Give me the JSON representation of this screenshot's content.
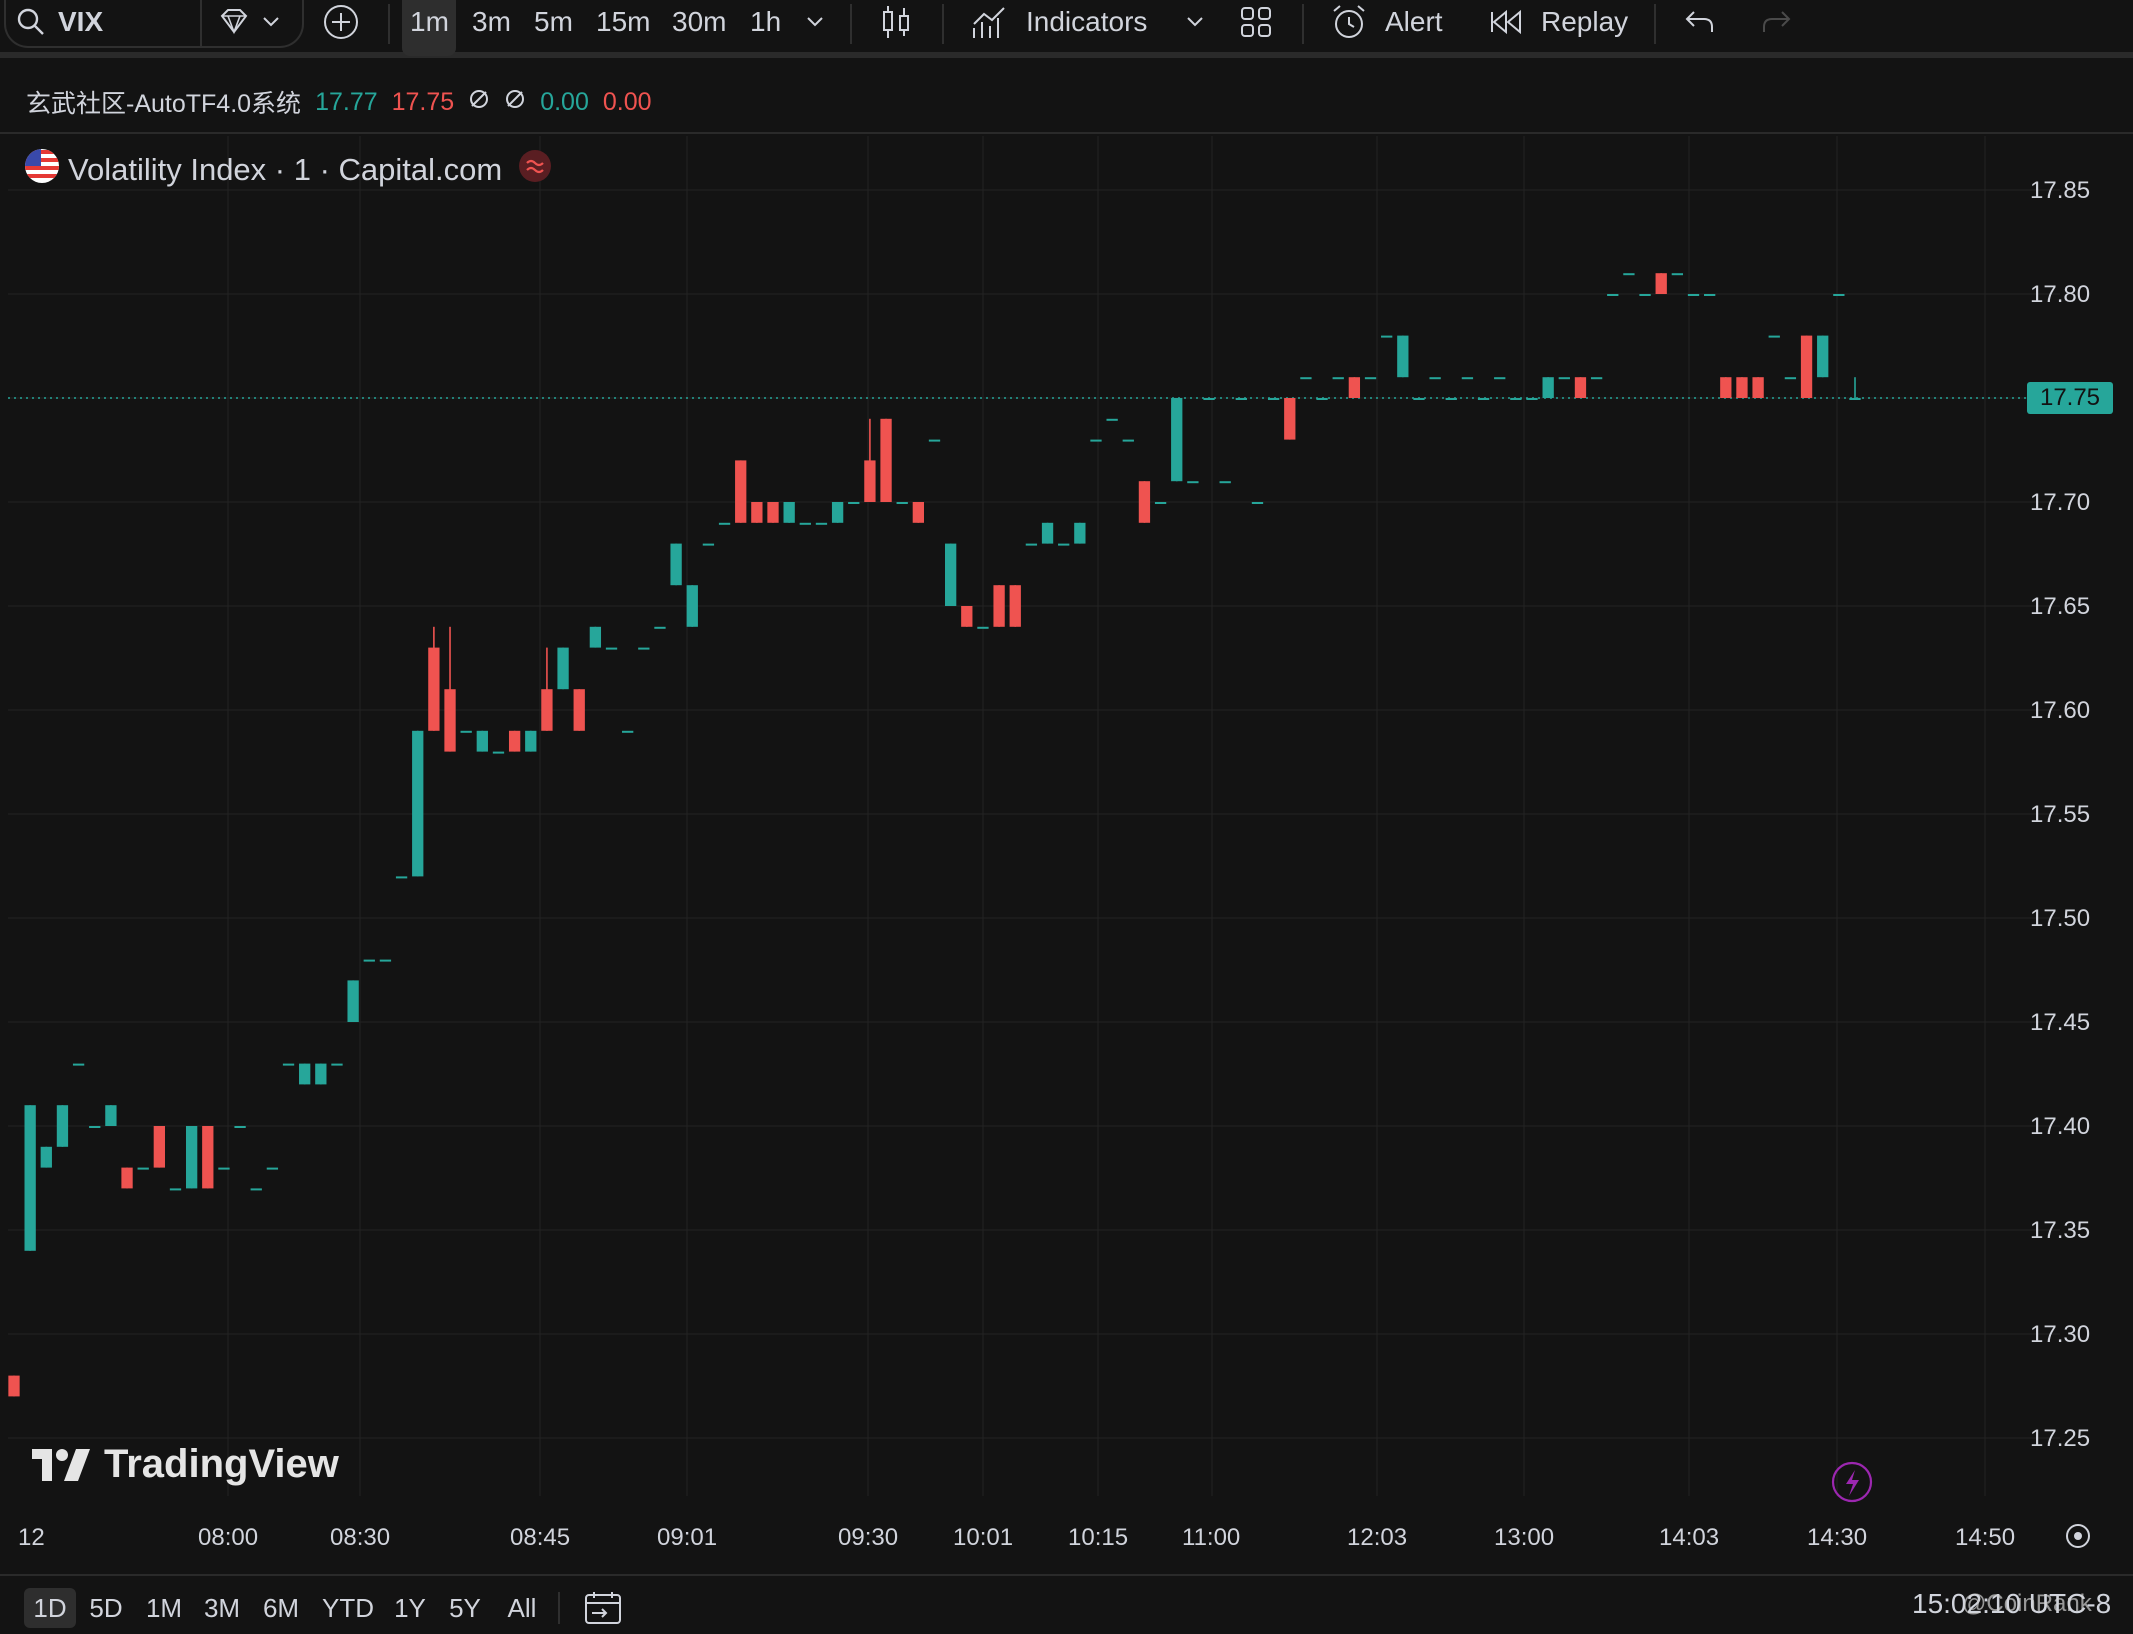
{
  "toolbar": {
    "symbol": "VIX",
    "timeframes": [
      "1m",
      "3m",
      "5m",
      "15m",
      "30m",
      "1h"
    ],
    "active_timeframe": "1m",
    "indicators_label": "Indicators",
    "alert_label": "Alert",
    "replay_label": "Replay",
    "icons": [
      "search-icon",
      "diamond-icon",
      "chevron-down-icon",
      "add-compare-icon",
      "candles-icon",
      "indicators-icon",
      "layout-icon",
      "alarm-clock-icon",
      "replay-icon",
      "undo-icon",
      "redo-icon"
    ]
  },
  "indicator_legend": {
    "name": "玄武社区-AutoTF4.0系统",
    "value1": "17.77",
    "value2": "17.75",
    "value3": "0.00",
    "value4": "0.00"
  },
  "symbol_title": "Volatility Index · 1 · Capital.com",
  "colors": {
    "up": "#26a69a",
    "down": "#ef5350",
    "background": "#131313",
    "grid": "#232323"
  },
  "chart_data": {
    "type": "candlestick",
    "current_price": "17.75",
    "y_ticks": [
      "17.85",
      "17.80",
      "17.75",
      "17.70",
      "17.65",
      "17.60",
      "17.55",
      "17.50",
      "17.45",
      "17.40",
      "17.35",
      "17.30",
      "17.25"
    ],
    "ylim": [
      17.22,
      17.87
    ],
    "x_tick_labels": [
      "12",
      "08:00",
      "08:30",
      "08:45",
      "09:01",
      "09:30",
      "10:01",
      "10:15",
      "11:00",
      "12:03",
      "13:00",
      "14:03",
      "14:30",
      "14:50"
    ],
    "candles": [
      {
        "o": 17.28,
        "h": 17.28,
        "l": 17.27,
        "c": 17.27
      },
      {
        "o": 17.34,
        "h": 17.41,
        "l": 17.34,
        "c": 17.41
      },
      {
        "o": 17.38,
        "h": 17.39,
        "l": 17.38,
        "c": 17.39
      },
      {
        "o": 17.39,
        "h": 17.41,
        "l": 17.39,
        "c": 17.41
      },
      {
        "o": 17.43,
        "h": 17.43,
        "l": 17.43,
        "c": 17.43
      },
      {
        "o": 17.4,
        "h": 17.4,
        "l": 17.4,
        "c": 17.4
      },
      {
        "o": 17.4,
        "h": 17.41,
        "l": 17.4,
        "c": 17.41
      },
      {
        "o": 17.38,
        "h": 17.38,
        "l": 17.37,
        "c": 17.37
      },
      {
        "o": 17.38,
        "h": 17.38,
        "l": 17.38,
        "c": 17.38
      },
      {
        "o": 17.4,
        "h": 17.4,
        "l": 17.38,
        "c": 17.38
      },
      {
        "o": 17.37,
        "h": 17.37,
        "l": 17.37,
        "c": 17.37
      },
      {
        "o": 17.37,
        "h": 17.4,
        "l": 17.37,
        "c": 17.4
      },
      {
        "o": 17.4,
        "h": 17.4,
        "l": 17.37,
        "c": 17.37
      },
      {
        "o": 17.38,
        "h": 17.38,
        "l": 17.38,
        "c": 17.38
      },
      {
        "o": 17.4,
        "h": 17.4,
        "l": 17.4,
        "c": 17.4
      },
      {
        "o": 17.37,
        "h": 17.37,
        "l": 17.37,
        "c": 17.37
      },
      {
        "o": 17.38,
        "h": 17.38,
        "l": 17.38,
        "c": 17.38
      },
      {
        "o": 17.43,
        "h": 17.43,
        "l": 17.43,
        "c": 17.43
      },
      {
        "o": 17.42,
        "h": 17.43,
        "l": 17.42,
        "c": 17.43
      },
      {
        "o": 17.42,
        "h": 17.43,
        "l": 17.42,
        "c": 17.43
      },
      {
        "o": 17.43,
        "h": 17.43,
        "l": 17.43,
        "c": 17.43
      },
      {
        "o": 17.45,
        "h": 17.47,
        "l": 17.45,
        "c": 17.47
      },
      {
        "o": 17.48,
        "h": 17.48,
        "l": 17.48,
        "c": 17.48
      },
      {
        "o": 17.48,
        "h": 17.48,
        "l": 17.48,
        "c": 17.48
      },
      {
        "o": 17.52,
        "h": 17.52,
        "l": 17.52,
        "c": 17.52
      },
      {
        "o": 17.52,
        "h": 17.59,
        "l": 17.52,
        "c": 17.59
      },
      {
        "o": 17.63,
        "h": 17.64,
        "l": 17.59,
        "c": 17.59
      },
      {
        "o": 17.61,
        "h": 17.64,
        "l": 17.58,
        "c": 17.58
      },
      {
        "o": 17.59,
        "h": 17.59,
        "l": 17.59,
        "c": 17.59
      },
      {
        "o": 17.58,
        "h": 17.59,
        "l": 17.58,
        "c": 17.59
      },
      {
        "o": 17.58,
        "h": 17.58,
        "l": 17.58,
        "c": 17.58
      },
      {
        "o": 17.59,
        "h": 17.59,
        "l": 17.58,
        "c": 17.58
      },
      {
        "o": 17.58,
        "h": 17.59,
        "l": 17.58,
        "c": 17.59
      },
      {
        "o": 17.61,
        "h": 17.63,
        "l": 17.59,
        "c": 17.59
      },
      {
        "o": 17.61,
        "h": 17.63,
        "l": 17.61,
        "c": 17.63
      },
      {
        "o": 17.61,
        "h": 17.61,
        "l": 17.59,
        "c": 17.59
      },
      {
        "o": 17.63,
        "h": 17.64,
        "l": 17.63,
        "c": 17.64
      },
      {
        "o": 17.63,
        "h": 17.63,
        "l": 17.63,
        "c": 17.63
      },
      {
        "o": 17.59,
        "h": 17.59,
        "l": 17.59,
        "c": 17.59
      },
      {
        "o": 17.63,
        "h": 17.63,
        "l": 17.63,
        "c": 17.63
      },
      {
        "o": 17.64,
        "h": 17.64,
        "l": 17.64,
        "c": 17.64
      },
      {
        "o": 17.66,
        "h": 17.68,
        "l": 17.66,
        "c": 17.68
      },
      {
        "o": 17.64,
        "h": 17.66,
        "l": 17.64,
        "c": 17.66
      },
      {
        "o": 17.68,
        "h": 17.68,
        "l": 17.68,
        "c": 17.68
      },
      {
        "o": 17.69,
        "h": 17.69,
        "l": 17.69,
        "c": 17.69
      },
      {
        "o": 17.72,
        "h": 17.72,
        "l": 17.69,
        "c": 17.69
      },
      {
        "o": 17.7,
        "h": 17.7,
        "l": 17.69,
        "c": 17.69
      },
      {
        "o": 17.7,
        "h": 17.7,
        "l": 17.69,
        "c": 17.69
      },
      {
        "o": 17.69,
        "h": 17.7,
        "l": 17.69,
        "c": 17.7
      },
      {
        "o": 17.69,
        "h": 17.69,
        "l": 17.69,
        "c": 17.69
      },
      {
        "o": 17.69,
        "h": 17.69,
        "l": 17.69,
        "c": 17.69
      },
      {
        "o": 17.69,
        "h": 17.7,
        "l": 17.69,
        "c": 17.7
      },
      {
        "o": 17.7,
        "h": 17.7,
        "l": 17.7,
        "c": 17.7
      },
      {
        "o": 17.72,
        "h": 17.74,
        "l": 17.7,
        "c": 17.7
      },
      {
        "o": 17.74,
        "h": 17.74,
        "l": 17.7,
        "c": 17.7
      },
      {
        "o": 17.7,
        "h": 17.7,
        "l": 17.7,
        "c": 17.7
      },
      {
        "o": 17.7,
        "h": 17.7,
        "l": 17.69,
        "c": 17.69
      },
      {
        "o": 17.73,
        "h": 17.73,
        "l": 17.73,
        "c": 17.73
      },
      {
        "o": 17.65,
        "h": 17.68,
        "l": 17.65,
        "c": 17.68
      },
      {
        "o": 17.65,
        "h": 17.65,
        "l": 17.64,
        "c": 17.64
      },
      {
        "o": 17.64,
        "h": 17.64,
        "l": 17.64,
        "c": 17.64
      },
      {
        "o": 17.66,
        "h": 17.66,
        "l": 17.64,
        "c": 17.64
      },
      {
        "o": 17.66,
        "h": 17.66,
        "l": 17.64,
        "c": 17.64
      },
      {
        "o": 17.68,
        "h": 17.68,
        "l": 17.68,
        "c": 17.68
      },
      {
        "o": 17.68,
        "h": 17.69,
        "l": 17.68,
        "c": 17.69
      },
      {
        "o": 17.68,
        "h": 17.68,
        "l": 17.68,
        "c": 17.68
      },
      {
        "o": 17.68,
        "h": 17.69,
        "l": 17.68,
        "c": 17.69
      },
      {
        "o": 17.73,
        "h": 17.73,
        "l": 17.73,
        "c": 17.73
      },
      {
        "o": 17.74,
        "h": 17.74,
        "l": 17.74,
        "c": 17.74
      },
      {
        "o": 17.73,
        "h": 17.73,
        "l": 17.73,
        "c": 17.73
      },
      {
        "o": 17.71,
        "h": 17.71,
        "l": 17.69,
        "c": 17.69
      },
      {
        "o": 17.7,
        "h": 17.7,
        "l": 17.7,
        "c": 17.7
      },
      {
        "o": 17.71,
        "h": 17.75,
        "l": 17.71,
        "c": 17.75
      },
      {
        "o": 17.71,
        "h": 17.71,
        "l": 17.71,
        "c": 17.71
      },
      {
        "o": 17.75,
        "h": 17.75,
        "l": 17.75,
        "c": 17.75
      },
      {
        "o": 17.71,
        "h": 17.71,
        "l": 17.71,
        "c": 17.71
      },
      {
        "o": 17.75,
        "h": 17.75,
        "l": 17.75,
        "c": 17.75
      },
      {
        "o": 17.7,
        "h": 17.7,
        "l": 17.7,
        "c": 17.7
      },
      {
        "o": 17.75,
        "h": 17.75,
        "l": 17.75,
        "c": 17.75
      },
      {
        "o": 17.75,
        "h": 17.75,
        "l": 17.73,
        "c": 17.73
      },
      {
        "o": 17.76,
        "h": 17.76,
        "l": 17.76,
        "c": 17.76
      },
      {
        "o": 17.75,
        "h": 17.75,
        "l": 17.75,
        "c": 17.75
      },
      {
        "o": 17.76,
        "h": 17.76,
        "l": 17.76,
        "c": 17.76
      },
      {
        "o": 17.76,
        "h": 17.76,
        "l": 17.75,
        "c": 17.75
      },
      {
        "o": 17.76,
        "h": 17.76,
        "l": 17.76,
        "c": 17.76
      },
      {
        "o": 17.78,
        "h": 17.78,
        "l": 17.78,
        "c": 17.78
      },
      {
        "o": 17.76,
        "h": 17.78,
        "l": 17.76,
        "c": 17.78
      },
      {
        "o": 17.75,
        "h": 17.75,
        "l": 17.75,
        "c": 17.75
      },
      {
        "o": 17.76,
        "h": 17.76,
        "l": 17.76,
        "c": 17.76
      },
      {
        "o": 17.75,
        "h": 17.75,
        "l": 17.75,
        "c": 17.75
      },
      {
        "o": 17.76,
        "h": 17.76,
        "l": 17.76,
        "c": 17.76
      },
      {
        "o": 17.75,
        "h": 17.75,
        "l": 17.75,
        "c": 17.75
      },
      {
        "o": 17.76,
        "h": 17.76,
        "l": 17.76,
        "c": 17.76
      },
      {
        "o": 17.75,
        "h": 17.75,
        "l": 17.75,
        "c": 17.75
      },
      {
        "o": 17.75,
        "h": 17.75,
        "l": 17.75,
        "c": 17.75
      },
      {
        "o": 17.75,
        "h": 17.76,
        "l": 17.75,
        "c": 17.76
      },
      {
        "o": 17.76,
        "h": 17.76,
        "l": 17.76,
        "c": 17.76
      },
      {
        "o": 17.76,
        "h": 17.76,
        "l": 17.75,
        "c": 17.75
      },
      {
        "o": 17.76,
        "h": 17.76,
        "l": 17.76,
        "c": 17.76
      },
      {
        "o": 17.8,
        "h": 17.8,
        "l": 17.8,
        "c": 17.8
      },
      {
        "o": 17.81,
        "h": 17.81,
        "l": 17.81,
        "c": 17.81
      },
      {
        "o": 17.8,
        "h": 17.8,
        "l": 17.8,
        "c": 17.8
      },
      {
        "o": 17.81,
        "h": 17.81,
        "l": 17.8,
        "c": 17.8
      },
      {
        "o": 17.81,
        "h": 17.81,
        "l": 17.81,
        "c": 17.81
      },
      {
        "o": 17.8,
        "h": 17.8,
        "l": 17.8,
        "c": 17.8
      },
      {
        "o": 17.8,
        "h": 17.8,
        "l": 17.8,
        "c": 17.8
      },
      {
        "o": 17.76,
        "h": 17.76,
        "l": 17.75,
        "c": 17.75
      },
      {
        "o": 17.76,
        "h": 17.76,
        "l": 17.75,
        "c": 17.75
      },
      {
        "o": 17.76,
        "h": 17.76,
        "l": 17.75,
        "c": 17.75
      },
      {
        "o": 17.78,
        "h": 17.78,
        "l": 17.78,
        "c": 17.78
      },
      {
        "o": 17.76,
        "h": 17.76,
        "l": 17.76,
        "c": 17.76
      },
      {
        "o": 17.78,
        "h": 17.78,
        "l": 17.75,
        "c": 17.75
      },
      {
        "o": 17.76,
        "h": 17.78,
        "l": 17.76,
        "c": 17.78
      },
      {
        "o": 17.8,
        "h": 17.8,
        "l": 17.8,
        "c": 17.8
      },
      {
        "o": 17.75,
        "h": 17.76,
        "l": 17.75,
        "c": 17.75
      }
    ]
  },
  "bottom_bar": {
    "ranges": [
      "1D",
      "5D",
      "1M",
      "3M",
      "6M",
      "YTD",
      "1Y",
      "5Y",
      "All"
    ],
    "active_range": "1D",
    "clock": "15:02:10 UTC-8",
    "watermark": "TradingView",
    "source_mark": "@CoinRank"
  }
}
